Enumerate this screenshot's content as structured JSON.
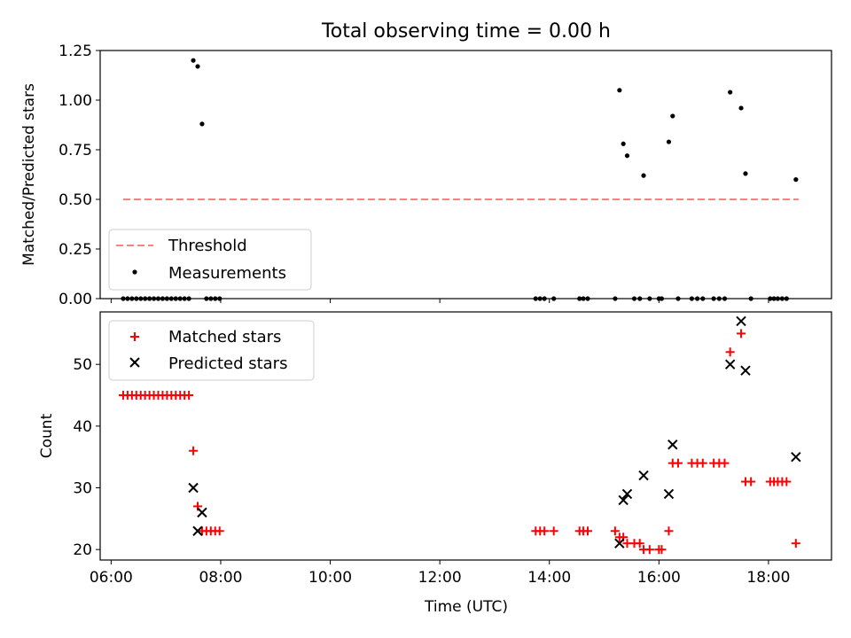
{
  "chart_data": [
    {
      "type": "scatter",
      "title": "Total observing time = 0.00 h",
      "ylabel": "Matched/Predicted stars",
      "xlabel": "",
      "x_unit": "hour_utc",
      "xlim": [
        5.8,
        19.15
      ],
      "ylim": [
        0,
        1.25
      ],
      "yticks": [
        0,
        0.25,
        0.5,
        0.75,
        1.0,
        1.25
      ],
      "ytick_labels": [
        "0.00",
        "0.25",
        "0.50",
        "0.75",
        "1.00",
        "1.25"
      ],
      "legend_position": "lower-left",
      "series": [
        {
          "name": "Threshold",
          "kind": "dashed-line",
          "color": "#ff8080",
          "x": [
            6.22,
            18.55
          ],
          "y": [
            0.5,
            0.5
          ]
        },
        {
          "name": "Measurements",
          "kind": "dot",
          "color": "#000000",
          "x": [
            6.22,
            6.3,
            6.38,
            6.46,
            6.54,
            6.62,
            6.7,
            6.78,
            6.86,
            6.94,
            7.02,
            7.1,
            7.18,
            7.26,
            7.34,
            7.42,
            7.5,
            7.58,
            7.66,
            7.74,
            7.82,
            7.9,
            7.98,
            13.75,
            13.83,
            13.91,
            14.08,
            14.55,
            14.62,
            14.7,
            15.2,
            15.28,
            15.35,
            15.42,
            15.55,
            15.65,
            15.72,
            15.83,
            16.0,
            16.05,
            16.18,
            16.25,
            16.35,
            16.6,
            16.7,
            16.8,
            17.0,
            17.1,
            17.2,
            17.3,
            17.5,
            17.58,
            17.68,
            18.03,
            18.1,
            18.17,
            18.25,
            18.33,
            18.5
          ],
          "y": [
            0,
            0,
            0,
            0,
            0,
            0,
            0,
            0,
            0,
            0,
            0,
            0,
            0,
            0,
            0,
            0,
            1.2,
            1.17,
            0.88,
            0,
            0,
            0,
            0,
            0,
            0,
            0,
            0,
            0,
            0,
            0,
            0,
            1.05,
            0.78,
            0.72,
            0,
            0,
            0.62,
            0,
            0,
            0,
            0.79,
            0.92,
            0,
            0,
            0,
            0,
            0,
            0,
            0,
            1.04,
            0.96,
            0.63,
            0,
            0,
            0,
            0,
            0,
            0,
            0.6
          ]
        }
      ]
    },
    {
      "type": "scatter",
      "title": "",
      "ylabel": "Count",
      "xlabel": "Time (UTC)",
      "x_unit": "hour_utc",
      "xlim": [
        5.8,
        19.15
      ],
      "ylim": [
        18.3,
        58.5
      ],
      "xticks": [
        6,
        8,
        10,
        12,
        14,
        16,
        18
      ],
      "xtick_labels": [
        "06:00",
        "08:00",
        "10:00",
        "12:00",
        "14:00",
        "16:00",
        "18:00"
      ],
      "yticks": [
        20,
        30,
        40,
        50
      ],
      "ytick_labels": [
        "20",
        "30",
        "40",
        "50"
      ],
      "legend_position": "top-left",
      "series": [
        {
          "name": "Matched stars",
          "kind": "plus",
          "color": "#ff0000",
          "x": [
            6.22,
            6.3,
            6.38,
            6.46,
            6.54,
            6.62,
            6.7,
            6.78,
            6.86,
            6.94,
            7.02,
            7.1,
            7.18,
            7.26,
            7.34,
            7.42,
            7.5,
            7.58,
            7.66,
            7.74,
            7.82,
            7.9,
            7.98,
            13.75,
            13.83,
            13.91,
            14.08,
            14.55,
            14.62,
            14.7,
            15.2,
            15.28,
            15.35,
            15.42,
            15.55,
            15.65,
            15.72,
            15.83,
            16.0,
            16.05,
            16.18,
            16.25,
            16.35,
            16.6,
            16.7,
            16.8,
            17.0,
            17.1,
            17.2,
            17.3,
            17.5,
            17.58,
            17.68,
            18.03,
            18.1,
            18.17,
            18.25,
            18.33,
            18.5
          ],
          "y": [
            45,
            45,
            45,
            45,
            45,
            45,
            45,
            45,
            45,
            45,
            45,
            45,
            45,
            45,
            45,
            45,
            36,
            27,
            23,
            23,
            23,
            23,
            23,
            23,
            23,
            23,
            23,
            23,
            23,
            23,
            23,
            22,
            22,
            21,
            21,
            21,
            20,
            20,
            20,
            20,
            23,
            34,
            34,
            34,
            34,
            34,
            34,
            34,
            34,
            52,
            55,
            31,
            31,
            31,
            31,
            31,
            31,
            31,
            21
          ]
        },
        {
          "name": "Predicted stars",
          "kind": "cross",
          "color": "#000000",
          "x": [
            7.5,
            7.58,
            7.66,
            15.28,
            15.35,
            15.42,
            15.72,
            16.18,
            16.25,
            17.3,
            17.5,
            17.58,
            18.5
          ],
          "y": [
            30,
            23,
            26,
            21,
            28,
            29,
            32,
            29,
            37,
            50,
            57,
            49,
            35
          ]
        }
      ]
    }
  ]
}
